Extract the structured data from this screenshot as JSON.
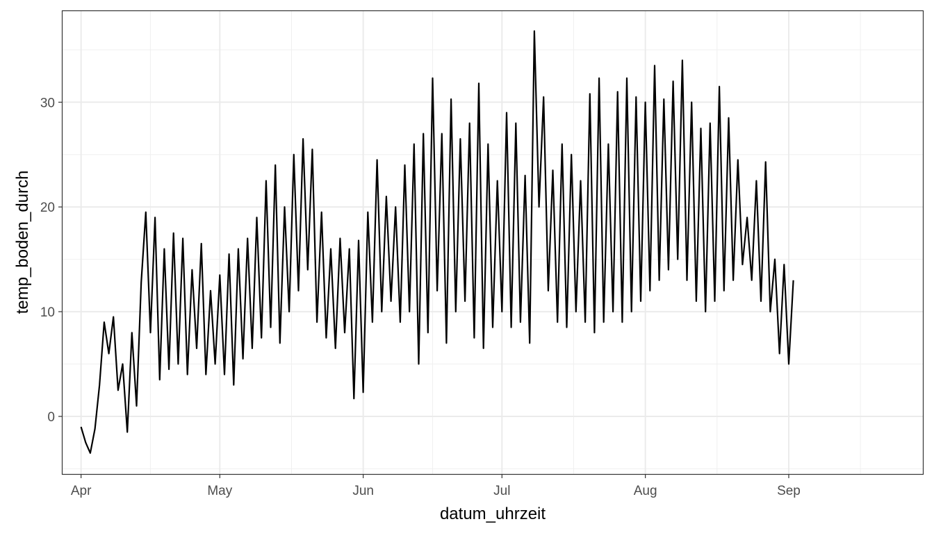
{
  "chart_data": {
    "type": "line",
    "title": "",
    "xlabel": "datum_uhrzeit",
    "ylabel": "temp_boden_durch",
    "x_tick_labels": [
      "Apr",
      "May",
      "Jun",
      "Jul",
      "Aug",
      "Sep"
    ],
    "x_ticks": [
      "2021-04-01",
      "2021-05-01",
      "2021-06-01",
      "2021-07-01",
      "2021-08-01",
      "2021-09-01"
    ],
    "y_ticks": [
      0,
      10,
      20,
      30
    ],
    "ylim": [
      -5.5,
      38.7
    ],
    "xlim": [
      "2021-03-28",
      "2021-09-30"
    ],
    "grid": true,
    "line_color": "#000000",
    "series": [
      {
        "values": [
          [
            "2021-04-01",
            -1.0
          ],
          [
            "2021-04-02",
            -2.5
          ],
          [
            "2021-04-03",
            -3.5
          ],
          [
            "2021-04-04",
            -1.2
          ],
          [
            "2021-04-05",
            3.0
          ],
          [
            "2021-04-06",
            9.0
          ],
          [
            "2021-04-07",
            6.0
          ],
          [
            "2021-04-08",
            9.5
          ],
          [
            "2021-04-09",
            2.5
          ],
          [
            "2021-04-10",
            5.0
          ],
          [
            "2021-04-11",
            -1.5
          ],
          [
            "2021-04-12",
            8.0
          ],
          [
            "2021-04-13",
            1.0
          ],
          [
            "2021-04-14",
            12.8
          ],
          [
            "2021-04-15",
            19.5
          ],
          [
            "2021-04-16",
            8.0
          ],
          [
            "2021-04-17",
            19.0
          ],
          [
            "2021-04-18",
            3.5
          ],
          [
            "2021-04-19",
            16.0
          ],
          [
            "2021-04-20",
            4.5
          ],
          [
            "2021-04-21",
            17.5
          ],
          [
            "2021-04-22",
            5.0
          ],
          [
            "2021-04-23",
            17.0
          ],
          [
            "2021-04-24",
            4.0
          ],
          [
            "2021-04-25",
            14.0
          ],
          [
            "2021-04-26",
            6.5
          ],
          [
            "2021-04-27",
            16.5
          ],
          [
            "2021-04-28",
            4.0
          ],
          [
            "2021-04-29",
            12.0
          ],
          [
            "2021-04-30",
            5.0
          ],
          [
            "2021-05-01",
            13.5
          ],
          [
            "2021-05-02",
            4.0
          ],
          [
            "2021-05-03",
            15.5
          ],
          [
            "2021-05-04",
            3.0
          ],
          [
            "2021-05-05",
            16.0
          ],
          [
            "2021-05-06",
            5.5
          ],
          [
            "2021-05-07",
            17.0
          ],
          [
            "2021-05-08",
            6.5
          ],
          [
            "2021-05-09",
            19.0
          ],
          [
            "2021-05-10",
            7.5
          ],
          [
            "2021-05-11",
            22.5
          ],
          [
            "2021-05-12",
            8.5
          ],
          [
            "2021-05-13",
            24.0
          ],
          [
            "2021-05-14",
            7.0
          ],
          [
            "2021-05-15",
            20.0
          ],
          [
            "2021-05-16",
            10.0
          ],
          [
            "2021-05-17",
            25.0
          ],
          [
            "2021-05-18",
            12.0
          ],
          [
            "2021-05-19",
            26.5
          ],
          [
            "2021-05-20",
            14.0
          ],
          [
            "2021-05-21",
            25.5
          ],
          [
            "2021-05-22",
            9.0
          ],
          [
            "2021-05-23",
            19.5
          ],
          [
            "2021-05-24",
            7.5
          ],
          [
            "2021-05-25",
            16.0
          ],
          [
            "2021-05-26",
            6.5
          ],
          [
            "2021-05-27",
            17.0
          ],
          [
            "2021-05-28",
            8.0
          ],
          [
            "2021-05-29",
            16.0
          ],
          [
            "2021-05-30",
            1.7
          ],
          [
            "2021-05-31",
            16.8
          ],
          [
            "2021-06-01",
            2.3
          ],
          [
            "2021-06-02",
            19.5
          ],
          [
            "2021-06-03",
            9.0
          ],
          [
            "2021-06-04",
            24.5
          ],
          [
            "2021-06-05",
            10.0
          ],
          [
            "2021-06-06",
            21.0
          ],
          [
            "2021-06-07",
            11.0
          ],
          [
            "2021-06-08",
            20.0
          ],
          [
            "2021-06-09",
            9.0
          ],
          [
            "2021-06-10",
            24.0
          ],
          [
            "2021-06-11",
            10.0
          ],
          [
            "2021-06-12",
            26.0
          ],
          [
            "2021-06-13",
            5.0
          ],
          [
            "2021-06-14",
            27.0
          ],
          [
            "2021-06-15",
            8.0
          ],
          [
            "2021-06-16",
            32.3
          ],
          [
            "2021-06-17",
            12.0
          ],
          [
            "2021-06-18",
            27.0
          ],
          [
            "2021-06-19",
            7.0
          ],
          [
            "2021-06-20",
            30.3
          ],
          [
            "2021-06-21",
            10.0
          ],
          [
            "2021-06-22",
            26.5
          ],
          [
            "2021-06-23",
            11.0
          ],
          [
            "2021-06-24",
            28.0
          ],
          [
            "2021-06-25",
            7.5
          ],
          [
            "2021-06-26",
            31.8
          ],
          [
            "2021-06-27",
            6.5
          ],
          [
            "2021-06-28",
            26.0
          ],
          [
            "2021-06-29",
            8.5
          ],
          [
            "2021-06-30",
            22.5
          ],
          [
            "2021-07-01",
            10.0
          ],
          [
            "2021-07-02",
            29.0
          ],
          [
            "2021-07-03",
            8.5
          ],
          [
            "2021-07-04",
            28.0
          ],
          [
            "2021-07-05",
            9.0
          ],
          [
            "2021-07-06",
            23.0
          ],
          [
            "2021-07-07",
            7.0
          ],
          [
            "2021-07-08",
            36.8
          ],
          [
            "2021-07-09",
            20.0
          ],
          [
            "2021-07-10",
            30.5
          ],
          [
            "2021-07-11",
            12.0
          ],
          [
            "2021-07-12",
            23.5
          ],
          [
            "2021-07-13",
            9.0
          ],
          [
            "2021-07-14",
            26.0
          ],
          [
            "2021-07-15",
            8.5
          ],
          [
            "2021-07-16",
            25.0
          ],
          [
            "2021-07-17",
            10.0
          ],
          [
            "2021-07-18",
            22.5
          ],
          [
            "2021-07-19",
            9.0
          ],
          [
            "2021-07-20",
            30.8
          ],
          [
            "2021-07-21",
            8.0
          ],
          [
            "2021-07-22",
            32.3
          ],
          [
            "2021-07-23",
            9.0
          ],
          [
            "2021-07-24",
            26.0
          ],
          [
            "2021-07-25",
            10.0
          ],
          [
            "2021-07-26",
            31.0
          ],
          [
            "2021-07-27",
            9.0
          ],
          [
            "2021-07-28",
            32.3
          ],
          [
            "2021-07-29",
            10.0
          ],
          [
            "2021-07-30",
            30.5
          ],
          [
            "2021-07-31",
            11.0
          ],
          [
            "2021-08-01",
            30.0
          ],
          [
            "2021-08-02",
            12.0
          ],
          [
            "2021-08-03",
            33.5
          ],
          [
            "2021-08-04",
            13.0
          ],
          [
            "2021-08-05",
            30.3
          ],
          [
            "2021-08-06",
            14.0
          ],
          [
            "2021-08-07",
            32.0
          ],
          [
            "2021-08-08",
            15.0
          ],
          [
            "2021-08-09",
            34.0
          ],
          [
            "2021-08-10",
            13.0
          ],
          [
            "2021-08-11",
            30.0
          ],
          [
            "2021-08-12",
            11.0
          ],
          [
            "2021-08-13",
            27.5
          ],
          [
            "2021-08-14",
            10.0
          ],
          [
            "2021-08-15",
            28.0
          ],
          [
            "2021-08-16",
            11.0
          ],
          [
            "2021-08-17",
            31.5
          ],
          [
            "2021-08-18",
            12.0
          ],
          [
            "2021-08-19",
            28.5
          ],
          [
            "2021-08-20",
            13.0
          ],
          [
            "2021-08-21",
            24.5
          ],
          [
            "2021-08-22",
            14.5
          ],
          [
            "2021-08-23",
            19.0
          ],
          [
            "2021-08-24",
            13.0
          ],
          [
            "2021-08-25",
            22.5
          ],
          [
            "2021-08-26",
            11.0
          ],
          [
            "2021-08-27",
            24.3
          ],
          [
            "2021-08-28",
            10.0
          ],
          [
            "2021-08-29",
            15.0
          ],
          [
            "2021-08-30",
            6.0
          ],
          [
            "2021-08-31",
            14.5
          ],
          [
            "2021-09-01",
            5.0
          ],
          [
            "2021-09-02",
            13.0
          ]
        ]
      }
    ]
  }
}
